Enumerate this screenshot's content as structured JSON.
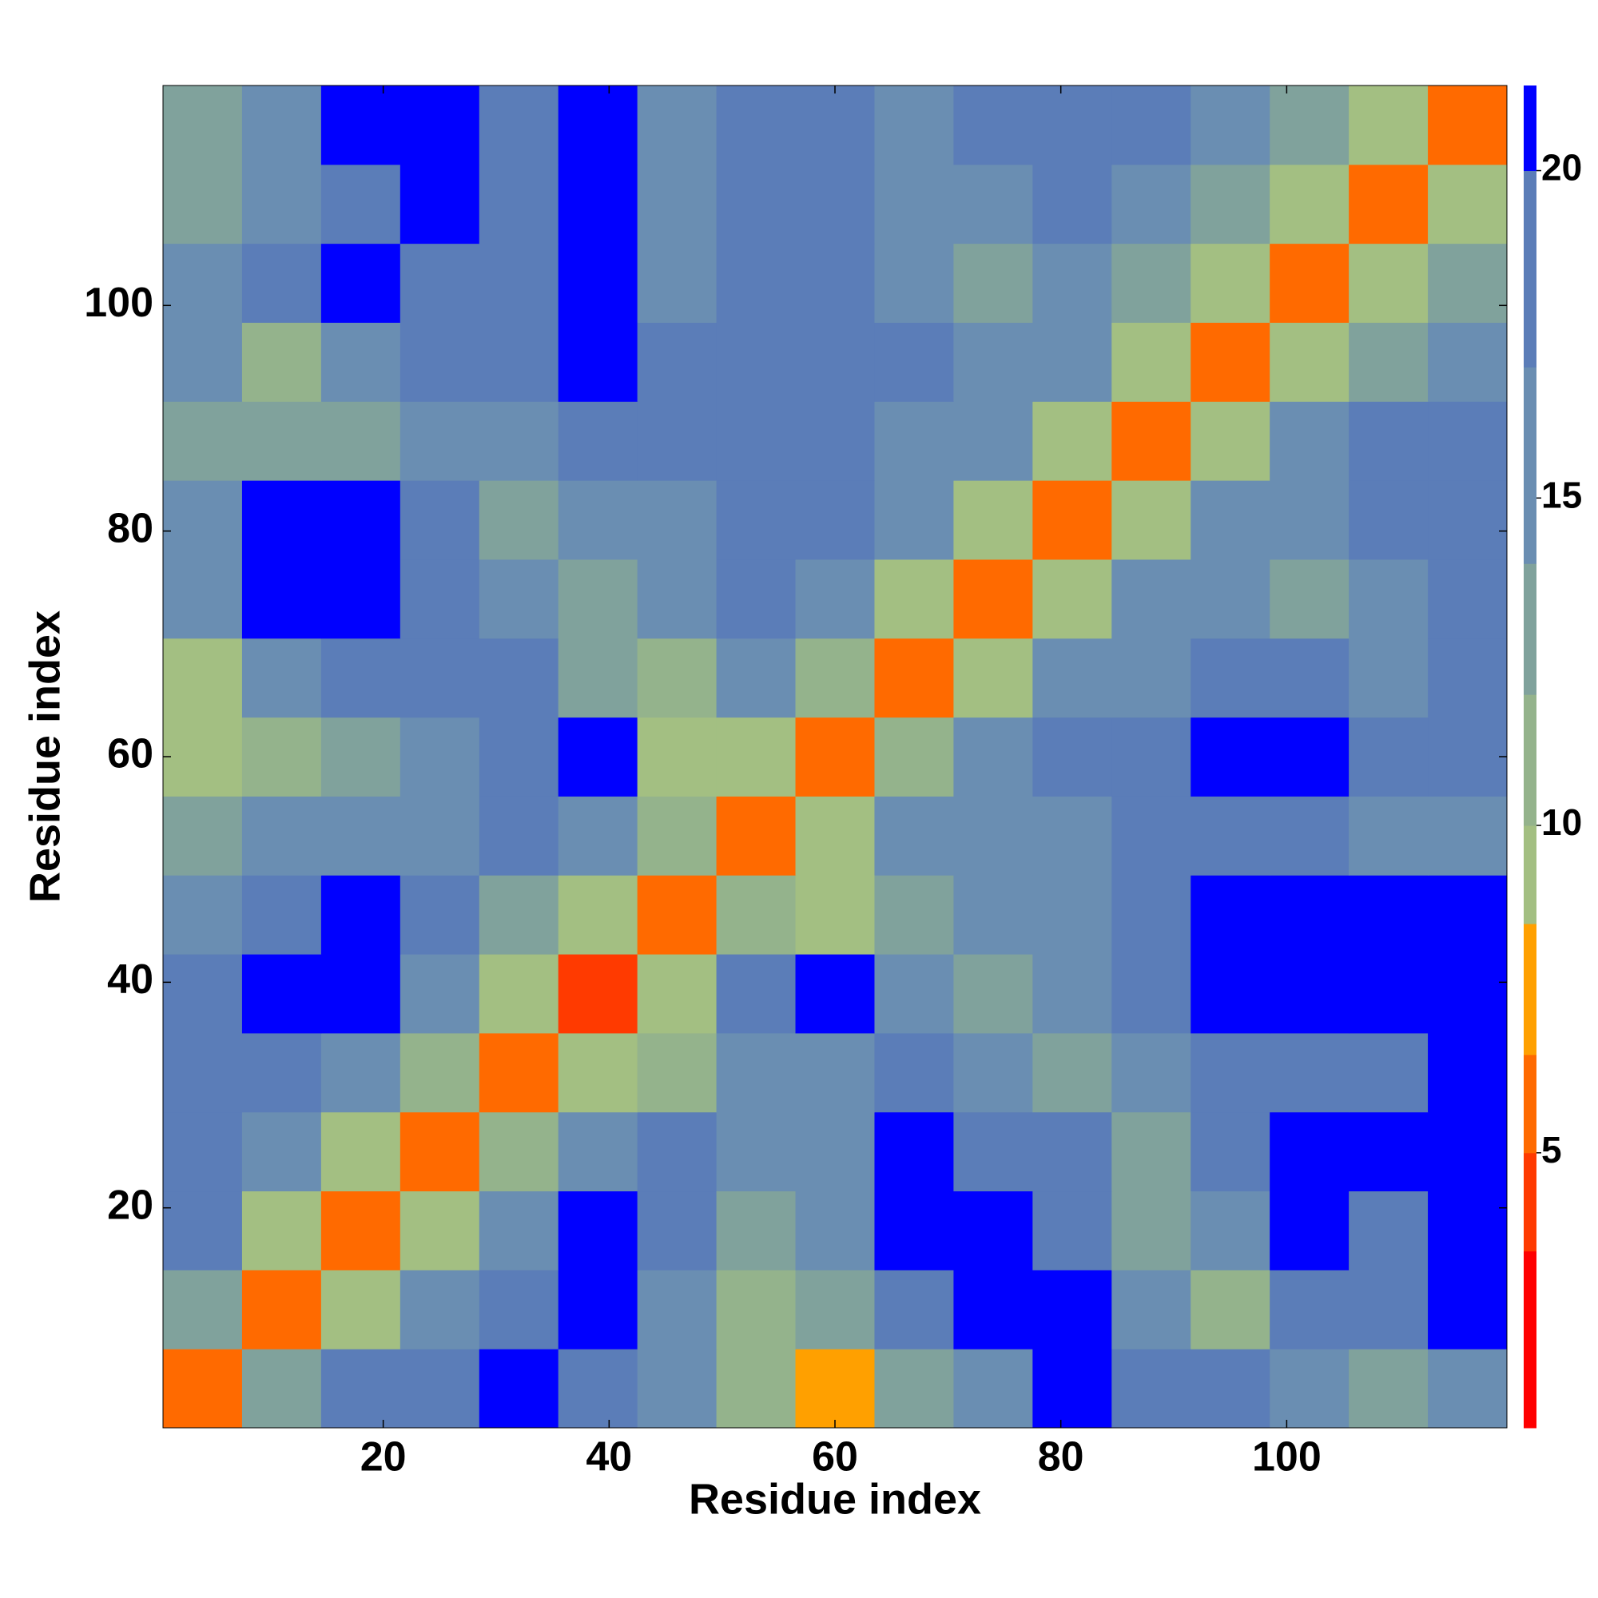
{
  "chart_data": {
    "type": "heatmap",
    "x_label": "Residue index",
    "y_label": "Residue index",
    "xlim": [
      0.5,
      119.5
    ],
    "ylim": [
      0.5,
      119.5
    ],
    "xticks": [
      20,
      40,
      60,
      80,
      100
    ],
    "yticks": [
      20,
      40,
      60,
      80,
      100
    ],
    "xbins": [
      0.5,
      7.5,
      14.5,
      21.5,
      28.5,
      35.5,
      42.5,
      49.5,
      56.5,
      63.5,
      70.5,
      77.5,
      84.5,
      91.5,
      98.5,
      105.5,
      112.5,
      119.5
    ],
    "ybins": [
      0.5,
      7.5,
      14.5,
      21.5,
      28.5,
      35.5,
      42.5,
      49.5,
      56.5,
      63.5,
      70.5,
      77.5,
      84.5,
      91.5,
      98.5,
      105.5,
      112.5,
      119.5
    ],
    "z": [
      [
        5,
        13,
        17,
        19,
        20,
        19,
        14,
        11,
        8,
        12,
        16,
        20,
        17,
        17,
        16,
        12,
        15
      ],
      [
        13,
        5,
        9,
        14,
        18,
        20,
        16,
        11,
        12,
        18,
        20,
        20,
        15,
        11,
        17,
        19,
        21
      ],
      [
        17,
        9,
        5,
        9,
        15,
        20,
        19,
        12,
        14,
        20,
        20,
        18,
        13,
        16,
        20,
        19,
        20
      ],
      [
        18,
        14,
        9,
        5,
        10,
        16,
        19,
        14,
        16,
        20,
        19,
        17,
        13,
        17,
        20,
        21,
        21
      ],
      [
        17,
        18,
        15,
        10,
        5,
        9,
        11,
        15,
        16,
        17,
        14,
        12,
        15,
        18,
        19,
        19,
        20
      ],
      [
        19,
        21,
        20,
        16,
        9,
        4,
        9,
        17,
        20,
        15,
        13,
        16,
        19,
        21,
        20,
        20,
        21
      ],
      [
        15,
        19,
        20,
        18,
        12,
        9,
        5,
        11,
        9,
        13,
        14,
        16,
        18,
        20,
        21,
        21,
        21
      ],
      [
        13,
        14,
        15,
        16,
        17,
        16,
        11,
        5,
        9,
        14,
        16,
        16,
        18,
        19,
        18,
        16,
        14
      ],
      [
        9,
        10,
        13,
        15,
        18,
        20,
        9,
        9,
        5,
        10,
        14,
        17,
        18,
        20,
        20,
        19,
        19
      ],
      [
        9,
        14,
        17,
        19,
        17,
        13,
        11,
        16,
        10,
        5,
        9,
        14,
        16,
        17,
        17,
        16,
        17
      ],
      [
        16,
        20,
        21,
        19,
        15,
        12,
        14,
        17,
        15,
        9,
        5,
        9,
        15,
        16,
        12,
        14,
        17
      ],
      [
        15,
        20,
        20,
        17,
        12,
        15,
        16,
        17,
        17,
        14,
        9,
        5,
        9,
        15,
        16,
        17,
        18
      ],
      [
        13,
        12,
        12,
        14,
        15,
        19,
        18,
        18,
        17,
        16,
        14,
        9,
        5,
        9,
        15,
        17,
        19
      ],
      [
        14,
        11,
        16,
        17,
        18,
        21,
        19,
        18,
        18,
        17,
        16,
        15,
        9,
        5,
        9,
        13,
        16
      ],
      [
        16,
        17,
        20,
        19,
        19,
        20,
        16,
        19,
        17,
        15,
        12,
        16,
        13,
        9,
        5,
        9,
        13
      ],
      [
        13,
        15,
        19,
        20,
        19,
        20,
        14,
        19,
        18,
        15,
        14,
        17,
        16,
        12,
        9,
        5,
        9
      ],
      [
        12,
        16,
        21,
        20,
        19,
        21,
        14,
        18,
        19,
        16,
        17,
        18,
        18,
        15,
        13,
        9,
        5
      ]
    ],
    "zlim": [
      0.8,
      21.3
    ],
    "zticks": [
      5,
      10,
      15,
      20
    ],
    "levels": [
      0.8,
      3.5,
      5,
      6.5,
      8.5,
      10,
      12,
      14,
      17,
      20,
      21.3
    ],
    "level_colors": [
      "#ff0000",
      "#ff3a00",
      "#ff6a00",
      "#ffa000",
      "#a3bf82",
      "#94b38c",
      "#80a29c",
      "#6a8eb2",
      "#5b7db8",
      "#0000ff"
    ]
  }
}
